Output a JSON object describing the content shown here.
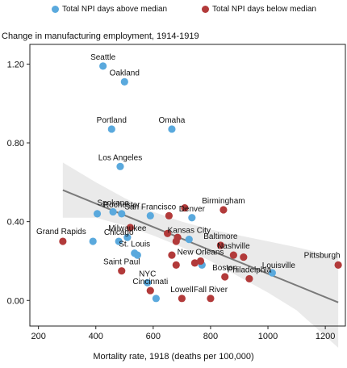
{
  "chart_data": {
    "type": "scatter",
    "title": "Change in manufacturing employment, 1914-1919",
    "xlabel": "Mortality rate, 1918 (deaths per 100,000)",
    "ylabel": "Change in manufacturing employment, 1914-1919",
    "xlim": [
      170,
      1270
    ],
    "ylim": [
      -0.13,
      1.3
    ],
    "xticks": [
      200,
      400,
      600,
      800,
      1000,
      1200
    ],
    "yticks": [
      0.0,
      0.4,
      0.8,
      1.2
    ],
    "ytick_labels": [
      "0.00",
      "0.40",
      "0.80",
      "1.20"
    ],
    "grid": false,
    "legend_position": "top",
    "series": [
      {
        "name": "Total NPI days above median",
        "color": "#5aa9dd",
        "points": [
          {
            "label": "Seattle",
            "x": 425,
            "y": 1.19
          },
          {
            "label": "Oakland",
            "x": 500,
            "y": 1.11
          },
          {
            "label": "Portland",
            "x": 455,
            "y": 0.87
          },
          {
            "label": "Omaha",
            "x": 665,
            "y": 0.87
          },
          {
            "label": "Los Angeles",
            "x": 485,
            "y": 0.68
          },
          {
            "label": "Spokane",
            "x": 460,
            "y": 0.45
          },
          {
            "label": "",
            "x": 405,
            "y": 0.44
          },
          {
            "label": "San Francisco",
            "x": 590,
            "y": 0.43
          },
          {
            "label": "Rochester",
            "x": 490,
            "y": 0.44
          },
          {
            "label": "Denver",
            "x": 735,
            "y": 0.42
          },
          {
            "label": "Kansas City",
            "x": 725,
            "y": 0.31
          },
          {
            "label": "Milwaukee",
            "x": 510,
            "y": 0.32
          },
          {
            "label": "Chicago",
            "x": 480,
            "y": 0.3
          },
          {
            "label": "",
            "x": 390,
            "y": 0.3
          },
          {
            "label": "St. Louis",
            "x": 535,
            "y": 0.24
          },
          {
            "label": "",
            "x": 545,
            "y": 0.23
          },
          {
            "label": "",
            "x": 770,
            "y": 0.18
          },
          {
            "label": "Louisville",
            "x": 1015,
            "y": 0.14
          },
          {
            "label": "NYC",
            "x": 580,
            "y": 0.09
          },
          {
            "label": "",
            "x": 610,
            "y": 0.01
          }
        ]
      },
      {
        "name": "Total NPI days below median",
        "color": "#b23a3a",
        "points": [
          {
            "label": "Birmingham",
            "x": 845,
            "y": 0.46
          },
          {
            "label": "",
            "x": 710,
            "y": 0.47
          },
          {
            "label": "",
            "x": 655,
            "y": 0.43
          },
          {
            "label": "Grand Rapids",
            "x": 285,
            "y": 0.3
          },
          {
            "label": "",
            "x": 680,
            "y": 0.3
          },
          {
            "label": "",
            "x": 685,
            "y": 0.32
          },
          {
            "label": "",
            "x": 650,
            "y": 0.34
          },
          {
            "label": "",
            "x": 520,
            "y": 0.37
          },
          {
            "label": "Baltimore",
            "x": 835,
            "y": 0.28
          },
          {
            "label": "Nashville",
            "x": 880,
            "y": 0.23
          },
          {
            "label": "",
            "x": 915,
            "y": 0.22
          },
          {
            "label": "New Orleans",
            "x": 765,
            "y": 0.2
          },
          {
            "label": "",
            "x": 745,
            "y": 0.19
          },
          {
            "label": "",
            "x": 665,
            "y": 0.23
          },
          {
            "label": "",
            "x": 680,
            "y": 0.18
          },
          {
            "label": "Saint Paul",
            "x": 490,
            "y": 0.15
          },
          {
            "label": "Boston",
            "x": 850,
            "y": 0.12
          },
          {
            "label": "Philadelphia",
            "x": 935,
            "y": 0.11
          },
          {
            "label": "Pittsburgh",
            "x": 1245,
            "y": 0.18
          },
          {
            "label": "Cincinnati",
            "x": 590,
            "y": 0.05
          },
          {
            "label": "Lowell",
            "x": 700,
            "y": 0.01
          },
          {
            "label": "Fall River",
            "x": 800,
            "y": 0.01
          }
        ]
      }
    ],
    "fit_line": {
      "x": [
        285,
        1245
      ],
      "y": [
        0.56,
        -0.01
      ]
    },
    "confidence_band": {
      "x": [
        285,
        400,
        500,
        600,
        700,
        800,
        900,
        1000,
        1100,
        1245
      ],
      "upper": [
        0.7,
        0.6,
        0.52,
        0.45,
        0.4,
        0.36,
        0.33,
        0.3,
        0.27,
        0.22
      ],
      "lower": [
        0.42,
        0.42,
        0.38,
        0.33,
        0.27,
        0.2,
        0.12,
        0.04,
        -0.05,
        -0.24
      ]
    }
  }
}
